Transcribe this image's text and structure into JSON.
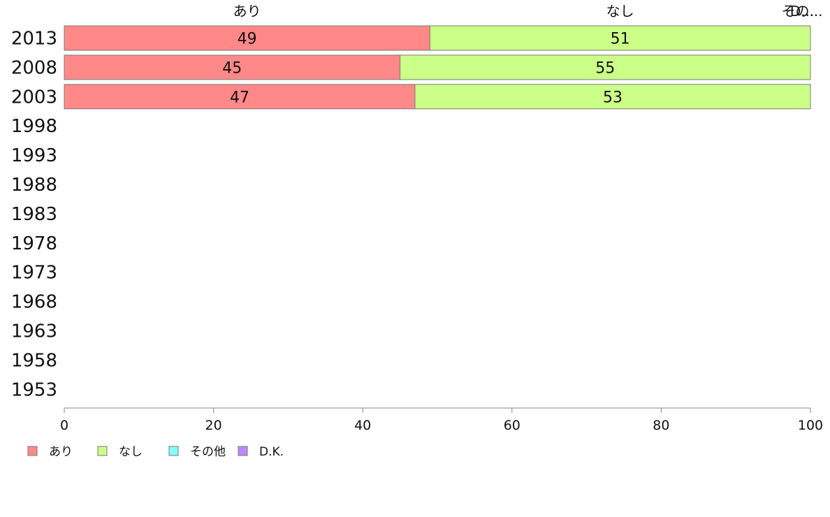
{
  "chart_data": {
    "type": "bar",
    "orientation": "horizontal",
    "stacked": true,
    "categories": [
      "2013",
      "2008",
      "2003",
      "1998",
      "1993",
      "1988",
      "1983",
      "1978",
      "1973",
      "1968",
      "1963",
      "1958",
      "1953"
    ],
    "series": [
      {
        "name": "あり",
        "color": "#ff8888",
        "values": [
          49,
          45,
          47,
          null,
          null,
          null,
          null,
          null,
          null,
          null,
          null,
          null,
          null
        ]
      },
      {
        "name": "なし",
        "color": "#ccff88",
        "values": [
          51,
          55,
          53,
          null,
          null,
          null,
          null,
          null,
          null,
          null,
          null,
          null,
          null
        ]
      },
      {
        "name": "その他",
        "color": "#88ffff",
        "values": [
          0,
          0,
          0,
          null,
          null,
          null,
          null,
          null,
          null,
          null,
          null,
          null,
          null
        ]
      },
      {
        "name": "D.K.",
        "color": "#bb88ff",
        "values": [
          0,
          0,
          0,
          null,
          null,
          null,
          null,
          null,
          null,
          null,
          null,
          null,
          null
        ]
      }
    ],
    "top_labels": [
      "あり",
      "なし",
      "その..."
    ],
    "top_labels_hidden": [
      "D..."
    ],
    "xlim": [
      0,
      100
    ],
    "xticks": [
      0,
      20,
      40,
      60,
      80,
      100
    ],
    "grid": false,
    "legend_position": "bottom-left"
  }
}
